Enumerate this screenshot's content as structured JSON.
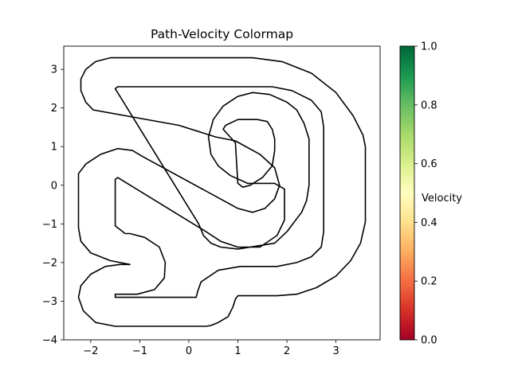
{
  "chart_data": {
    "type": "line",
    "title": "Path-Velocity Colormap",
    "xlabel": "",
    "ylabel": "",
    "xlim": [
      -2.55,
      3.9
    ],
    "ylim": [
      -4.0,
      3.6
    ],
    "xticks": [
      -2,
      -1,
      0,
      1,
      2,
      3
    ],
    "xtick_labels": [
      "−2",
      "−1",
      "0",
      "1",
      "2",
      "3"
    ],
    "yticks": [
      3,
      2,
      1,
      0,
      -1,
      -2,
      -3,
      -4
    ],
    "ytick_labels": [
      "3",
      "2",
      "1",
      "0",
      "−1",
      "−2",
      "−3",
      "−4"
    ],
    "grid": false,
    "series": [
      {
        "kind": "outer_boundary",
        "color": "#000000",
        "x": [
          -1.95,
          -2.1,
          -2.2,
          -2.2,
          -2.1,
          -1.9,
          -1.6,
          -1.3,
          1.3,
          1.9,
          2.5,
          3.0,
          3.35,
          3.55,
          3.6,
          3.6,
          3.5,
          3.3,
          3.0,
          2.6,
          2.2,
          1.8,
          1.4,
          1.0,
          0.95,
          0.9,
          0.8,
          0.6,
          0.45,
          0.35,
          0.25,
          0.05,
          -0.2,
          -1.5,
          -1.9,
          -2.15,
          -2.25,
          -2.2,
          -2.0,
          -1.7,
          -1.4,
          -1.2,
          -1.6,
          -2.0,
          -2.2,
          -2.25,
          -2.25,
          -2.1,
          -1.8,
          -1.45,
          -1.15,
          -0.95,
          1.0,
          1.3,
          1.55,
          1.75,
          1.85,
          1.75,
          1.45,
          0.95,
          0.55,
          -0.2,
          -1.95
        ],
        "y": [
          1.95,
          2.15,
          2.45,
          2.75,
          3.0,
          3.2,
          3.3,
          3.3,
          3.3,
          3.2,
          2.9,
          2.4,
          1.8,
          1.3,
          1.0,
          -0.95,
          -1.5,
          -1.95,
          -2.35,
          -2.65,
          -2.82,
          -2.86,
          -2.86,
          -2.86,
          -2.95,
          -3.15,
          -3.4,
          -3.55,
          -3.63,
          -3.65,
          -3.65,
          -3.65,
          -3.65,
          -3.65,
          -3.55,
          -3.25,
          -2.9,
          -2.6,
          -2.3,
          -2.1,
          -2.05,
          -2.05,
          -1.95,
          -1.75,
          -1.45,
          -1.1,
          0.3,
          0.55,
          0.8,
          0.95,
          0.9,
          0.75,
          -0.6,
          -0.7,
          -0.6,
          -0.35,
          0.0,
          0.45,
          0.8,
          1.15,
          1.25,
          1.55,
          1.95
        ]
      },
      {
        "kind": "inner_boundary",
        "color": "#000000",
        "x": [
          -1.5,
          -1.45,
          1.7,
          2.1,
          2.5,
          2.7,
          2.75,
          2.75,
          2.7,
          2.5,
          2.2,
          1.8,
          1.05,
          0.6,
          0.25,
          0.18,
          0.15,
          -1.5,
          -1.5,
          -1.05,
          -0.7,
          -0.5,
          -0.48,
          -0.6,
          -0.9,
          -1.2,
          -1.3,
          -1.4,
          -1.5,
          -1.5,
          -1.5,
          -1.45,
          0.35,
          0.65,
          1.0,
          1.45,
          1.8,
          1.95,
          1.95,
          1.75,
          1.2,
          0.85,
          0.6,
          0.45,
          0.4,
          0.5,
          0.7,
          1.0,
          1.3,
          1.65,
          2.0,
          2.2,
          2.35,
          2.45,
          2.45,
          2.4,
          2.3,
          2.15,
          2.0,
          1.75,
          1.0,
          0.65,
          0.45,
          0.3,
          0.2,
          -1.5
        ],
        "y": [
          2.5,
          2.55,
          2.55,
          2.45,
          2.2,
          1.9,
          1.5,
          -1.2,
          -1.6,
          -1.85,
          -2.0,
          -2.1,
          -2.1,
          -2.2,
          -2.5,
          -2.75,
          -2.9,
          -2.9,
          -2.82,
          -2.82,
          -2.7,
          -2.4,
          -2.0,
          -1.6,
          -1.35,
          -1.25,
          -1.25,
          -1.15,
          -1.05,
          -0.3,
          0.15,
          0.2,
          -1.2,
          -1.45,
          -1.6,
          -1.6,
          -1.3,
          -0.9,
          -0.1,
          0.05,
          0.05,
          0.25,
          0.5,
          0.8,
          1.25,
          1.7,
          2.05,
          2.3,
          2.4,
          2.35,
          2.15,
          1.95,
          1.6,
          1.2,
          0.0,
          -0.4,
          -0.7,
          -0.95,
          -1.2,
          -1.5,
          -1.65,
          -1.6,
          -1.5,
          -1.3,
          -1.0,
          2.5
        ]
      },
      {
        "kind": "center_loop",
        "color": "#000000",
        "x": [
          1.0,
          1.1,
          1.25,
          1.5,
          1.7,
          1.75,
          1.75,
          1.7,
          1.6,
          1.4,
          1.0,
          0.75,
          0.7,
          0.95,
          1.0
        ],
        "y": [
          0.05,
          -0.05,
          0.0,
          0.2,
          0.5,
          0.9,
          1.2,
          1.45,
          1.65,
          1.7,
          1.7,
          1.55,
          1.45,
          1.1,
          0.05
        ]
      }
    ],
    "colorbar": {
      "label": "Velocity",
      "min": 0.0,
      "max": 1.0,
      "ticks": [
        0.0,
        0.2,
        0.4,
        0.6,
        0.8,
        1.0
      ],
      "tick_labels": [
        "0.0",
        "0.2",
        "0.4",
        "0.6",
        "0.8",
        "1.0"
      ],
      "colormap": "RdYlGn",
      "colormap_stops": [
        "#a50026",
        "#d73027",
        "#f46d43",
        "#fdae61",
        "#fee08b",
        "#ffffbf",
        "#d9ef8b",
        "#a6d96a",
        "#66bd63",
        "#1a9850",
        "#006837"
      ]
    }
  }
}
